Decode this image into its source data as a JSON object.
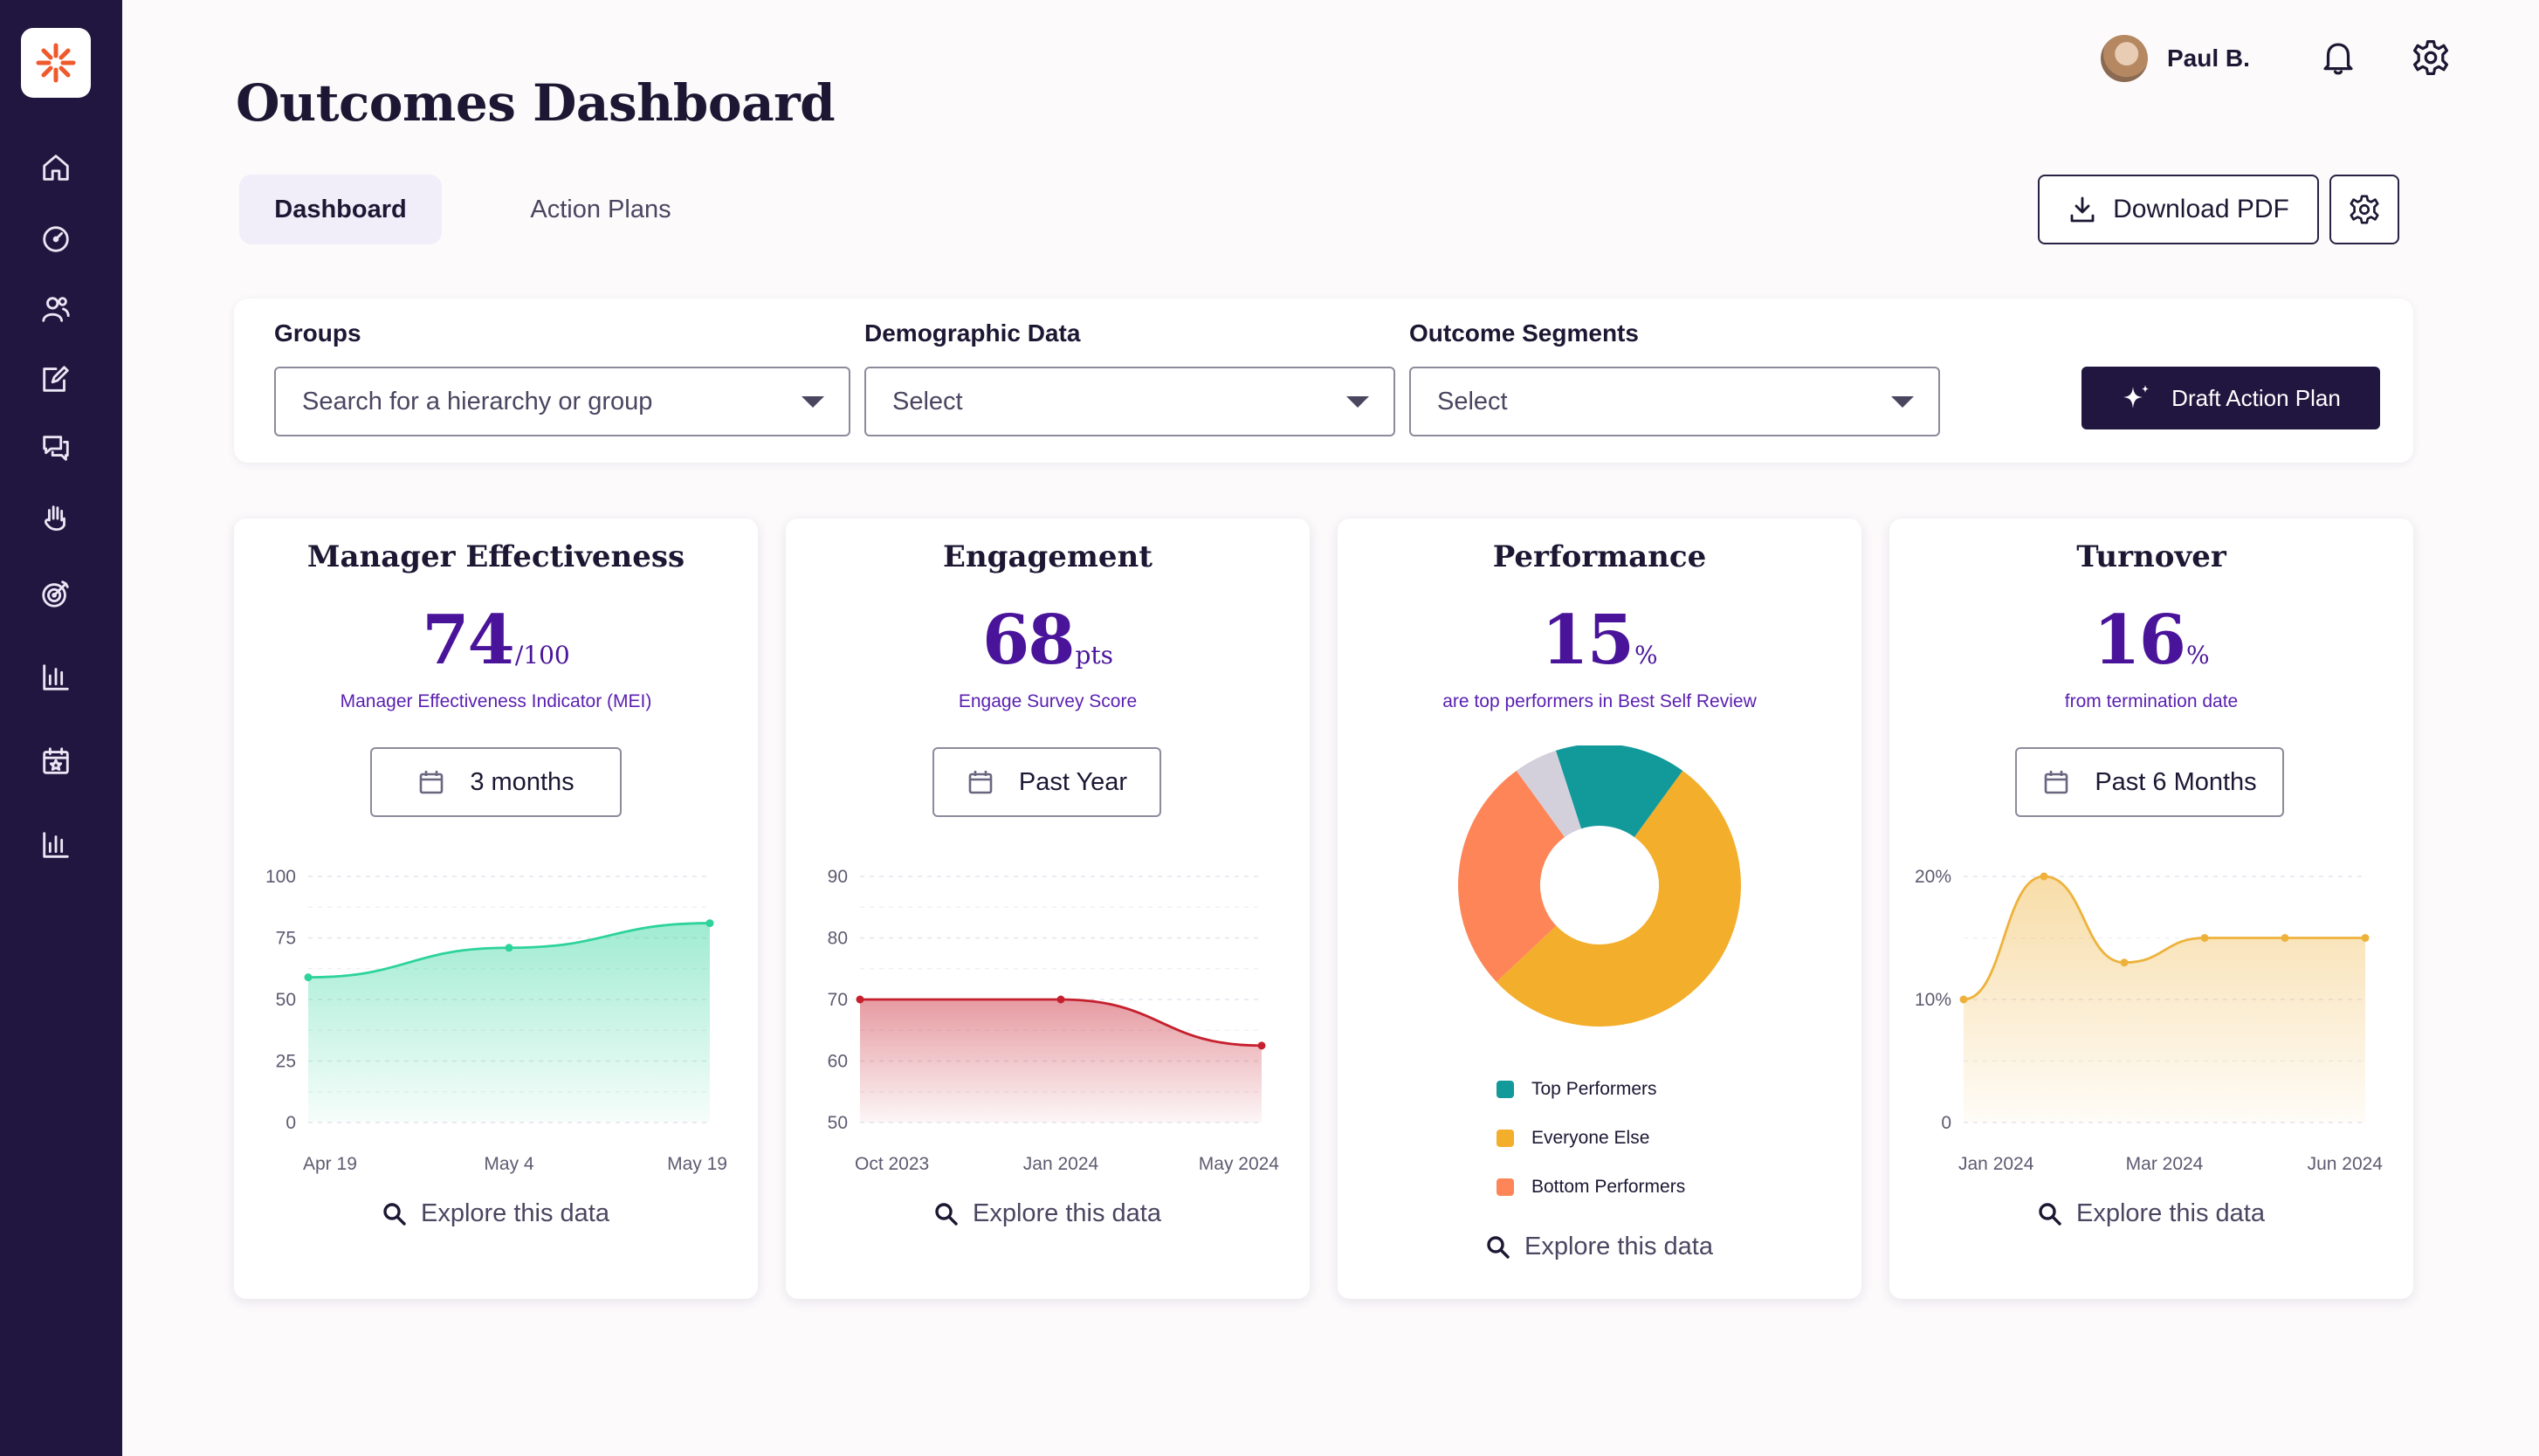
{
  "page": {
    "title": "Outcomes Dashboard"
  },
  "user": {
    "name": "Paul B."
  },
  "sidebar": {
    "items": [
      {
        "icon": "home-icon"
      },
      {
        "icon": "speedometer-icon"
      },
      {
        "icon": "people-icon"
      },
      {
        "icon": "edit-document-icon"
      },
      {
        "icon": "chat-bubbles-icon"
      },
      {
        "icon": "raised-hand-icon"
      },
      {
        "icon": "target-icon"
      },
      {
        "icon": "bar-chart-icon"
      },
      {
        "icon": "calendar-star-icon"
      },
      {
        "icon": "bar-chart-icon"
      }
    ]
  },
  "tabs": [
    {
      "label": "Dashboard",
      "active": true
    },
    {
      "label": "Action Plans",
      "active": false
    }
  ],
  "toolbar": {
    "download_label": "Download PDF"
  },
  "filters": {
    "groups": {
      "label": "Groups",
      "placeholder": "Search for a hierarchy or group"
    },
    "demographic": {
      "label": "Demographic Data",
      "value": "Select"
    },
    "segments": {
      "label": "Outcome Segments",
      "value": "Select"
    },
    "draft_label": "Draft Action Plan"
  },
  "explore_label": "Explore this data",
  "cards": {
    "manager": {
      "title": "Manager Effectiveness",
      "value": "74",
      "unit": "/100",
      "subtitle": "Manager Effectiveness Indicator (MEI)",
      "range": "3 months"
    },
    "engagement": {
      "title": "Engagement",
      "value": "68",
      "unit": "pts",
      "subtitle": "Engage Survey Score",
      "range": "Past Year"
    },
    "performance": {
      "title": "Performance",
      "value": "15",
      "unit": "%",
      "subtitle": "are top performers in Best Self Review"
    },
    "turnover": {
      "title": "Turnover",
      "value": "16",
      "unit": "%",
      "subtitle": "from termination date",
      "range": "Past 6 Months"
    }
  },
  "colors": {
    "accent": "#4a149a",
    "dark": "#21163f",
    "teal": "#12999a",
    "orange": "#f3ae2c",
    "coral": "#fe8558",
    "gray": "#d3d0dc",
    "green": "#2cd39b",
    "red": "#c6202e",
    "amber": "#eeb23c"
  },
  "chart_data": [
    {
      "type": "area",
      "title": "Manager Effectiveness",
      "x": [
        "Apr 19",
        "May 4",
        "May 19"
      ],
      "series": [
        {
          "values": [
            59,
            71,
            81
          ]
        }
      ],
      "ylim": [
        0,
        100
      ],
      "yticks": [
        "0",
        "25",
        "50",
        "75",
        "100"
      ],
      "xticks": [
        "Apr 19",
        "May 4",
        "May 19"
      ],
      "grid": true,
      "color": "#2cd39b"
    },
    {
      "type": "area",
      "title": "Engagement",
      "x": [
        "Oct 2023",
        "Jan 2024",
        "May 2024"
      ],
      "series": [
        {
          "values": [
            70,
            70,
            62.5
          ]
        }
      ],
      "ylim": [
        50,
        90
      ],
      "yticks": [
        "50",
        "60",
        "70",
        "80",
        "90"
      ],
      "xticks": [
        "Oct 2023",
        "Jan 2024",
        "May 2024"
      ],
      "grid": true,
      "color": "#c6202e"
    },
    {
      "type": "pie",
      "title": "Performance",
      "labels": [
        "Top Performers",
        "Everyone Else",
        "Bottom Performers",
        ""
      ],
      "values": [
        15,
        53,
        27,
        5
      ],
      "colors": [
        "#12999a",
        "#f3ae2c",
        "#fe8558",
        "#d3d0dc"
      ],
      "legend": [
        {
          "label": "Top Performers",
          "color": "#12999a"
        },
        {
          "label": "Everyone Else",
          "color": "#f3ae2c"
        },
        {
          "label": "Bottom Performers",
          "color": "#fe8558"
        }
      ],
      "legend_position": "bottom"
    },
    {
      "type": "area",
      "title": "Turnover",
      "x": [
        "Jan 2024",
        "Feb 2024",
        "Mar 2024",
        "Apr 2024",
        "May 2024",
        "Jun 2024"
      ],
      "series": [
        {
          "values": [
            10,
            20,
            13,
            15,
            15,
            15
          ]
        }
      ],
      "ylim": [
        0,
        20
      ],
      "yticks": [
        "0",
        "10%",
        "20%"
      ],
      "xticks": [
        "Jan 2024",
        "Mar 2024",
        "Jun 2024"
      ],
      "grid": true,
      "color": "#eeb23c"
    }
  ]
}
